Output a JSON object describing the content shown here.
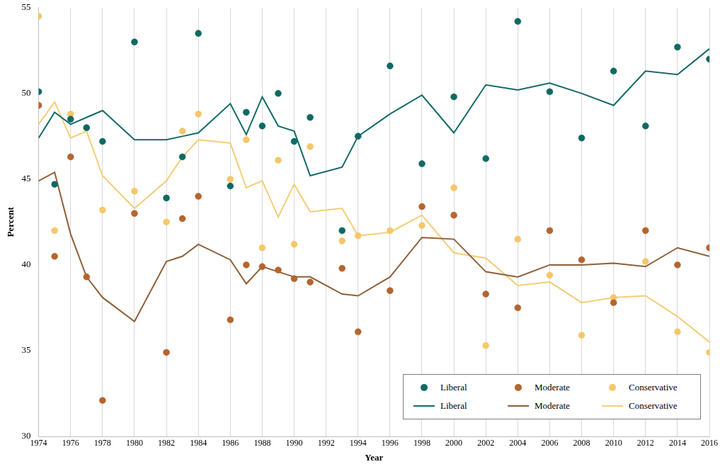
{
  "chart_data": {
    "type": "line",
    "x_label": "Year",
    "y_label": "Percent",
    "x": [
      1974,
      1975,
      1976,
      1977,
      1978,
      1980,
      1982,
      1983,
      1984,
      1986,
      1987,
      1988,
      1989,
      1990,
      1991,
      1993,
      1994,
      1996,
      1998,
      2000,
      2002,
      2004,
      2006,
      2008,
      2010,
      2012,
      2014,
      2016
    ],
    "xlim": [
      1974,
      2016
    ],
    "xticks": [
      1974,
      1976,
      1978,
      1980,
      1982,
      1984,
      1986,
      1988,
      1990,
      1992,
      1994,
      1996,
      1998,
      2000,
      2002,
      2004,
      2006,
      2008,
      2010,
      2012,
      2014,
      2016
    ],
    "ylim": [
      30,
      55
    ],
    "yticks": [
      30,
      35,
      40,
      45,
      50,
      55
    ],
    "grid": "x",
    "legend": "lower right",
    "series": [
      {
        "name": "Liberal",
        "type": "scatter",
        "marker": "circle",
        "color": "#0e6a64",
        "values": [
          50.1,
          44.7,
          48.5,
          48.0,
          47.2,
          53.0,
          43.9,
          46.3,
          53.5,
          44.6,
          48.9,
          48.1,
          50.0,
          47.2,
          48.6,
          42.0,
          47.5,
          51.6,
          45.9,
          49.8,
          46.2,
          54.2,
          50.1,
          47.4,
          51.3,
          48.1,
          52.7,
          52.0
        ]
      },
      {
        "name": "Moderate",
        "type": "scatter",
        "marker": "circle",
        "color": "#b5652d",
        "values": [
          49.3,
          40.5,
          46.3,
          39.3,
          32.1,
          43.0,
          34.9,
          42.7,
          44.0,
          36.8,
          40.0,
          39.9,
          39.7,
          39.2,
          39.0,
          39.8,
          36.1,
          38.5,
          43.4,
          42.9,
          38.3,
          37.5,
          42.0,
          40.3,
          37.8,
          42.0,
          40.0,
          41.0
        ]
      },
      {
        "name": "Conservative",
        "type": "scatter",
        "marker": "circle",
        "color": "#f6c768",
        "values": [
          54.5,
          42.0,
          48.8,
          48.0,
          43.2,
          44.3,
          42.5,
          47.8,
          48.8,
          45.0,
          47.3,
          41.0,
          46.1,
          41.2,
          46.9,
          41.4,
          41.7,
          42.0,
          42.3,
          44.5,
          35.3,
          41.5,
          39.4,
          35.9,
          38.1,
          40.2,
          36.1,
          34.9
        ]
      },
      {
        "name": "Liberal",
        "type": "line",
        "line_style": "solid",
        "color": "#136b68",
        "values": [
          47.4,
          48.9,
          48.2,
          48.6,
          49.0,
          47.3,
          47.3,
          47.5,
          47.7,
          49.4,
          47.6,
          49.8,
          48.1,
          47.8,
          45.2,
          45.7,
          47.5,
          48.8,
          49.9,
          47.7,
          50.5,
          50.2,
          50.6,
          50.0,
          49.3,
          51.3,
          51.1,
          52.6
        ]
      },
      {
        "name": "Moderate",
        "type": "line",
        "line_style": "solid",
        "color": "#8f5f38",
        "values": [
          44.9,
          45.4,
          41.8,
          39.3,
          38.1,
          36.7,
          40.2,
          40.5,
          41.2,
          40.3,
          38.9,
          39.9,
          39.6,
          39.3,
          39.3,
          38.3,
          38.2,
          39.3,
          41.6,
          41.5,
          39.6,
          39.3,
          40.0,
          40.0,
          40.1,
          39.9,
          41.0,
          40.5
        ]
      },
      {
        "name": "Conservative",
        "type": "line",
        "line_style": "solid",
        "color": "#f4cd78",
        "values": [
          48.2,
          49.5,
          47.4,
          47.8,
          45.2,
          43.3,
          44.9,
          46.3,
          47.3,
          47.1,
          44.5,
          44.9,
          42.8,
          44.7,
          43.1,
          43.3,
          41.7,
          41.9,
          42.9,
          40.7,
          40.4,
          38.8,
          39.0,
          37.8,
          38.1,
          38.2,
          37.0,
          35.5
        ]
      }
    ]
  }
}
